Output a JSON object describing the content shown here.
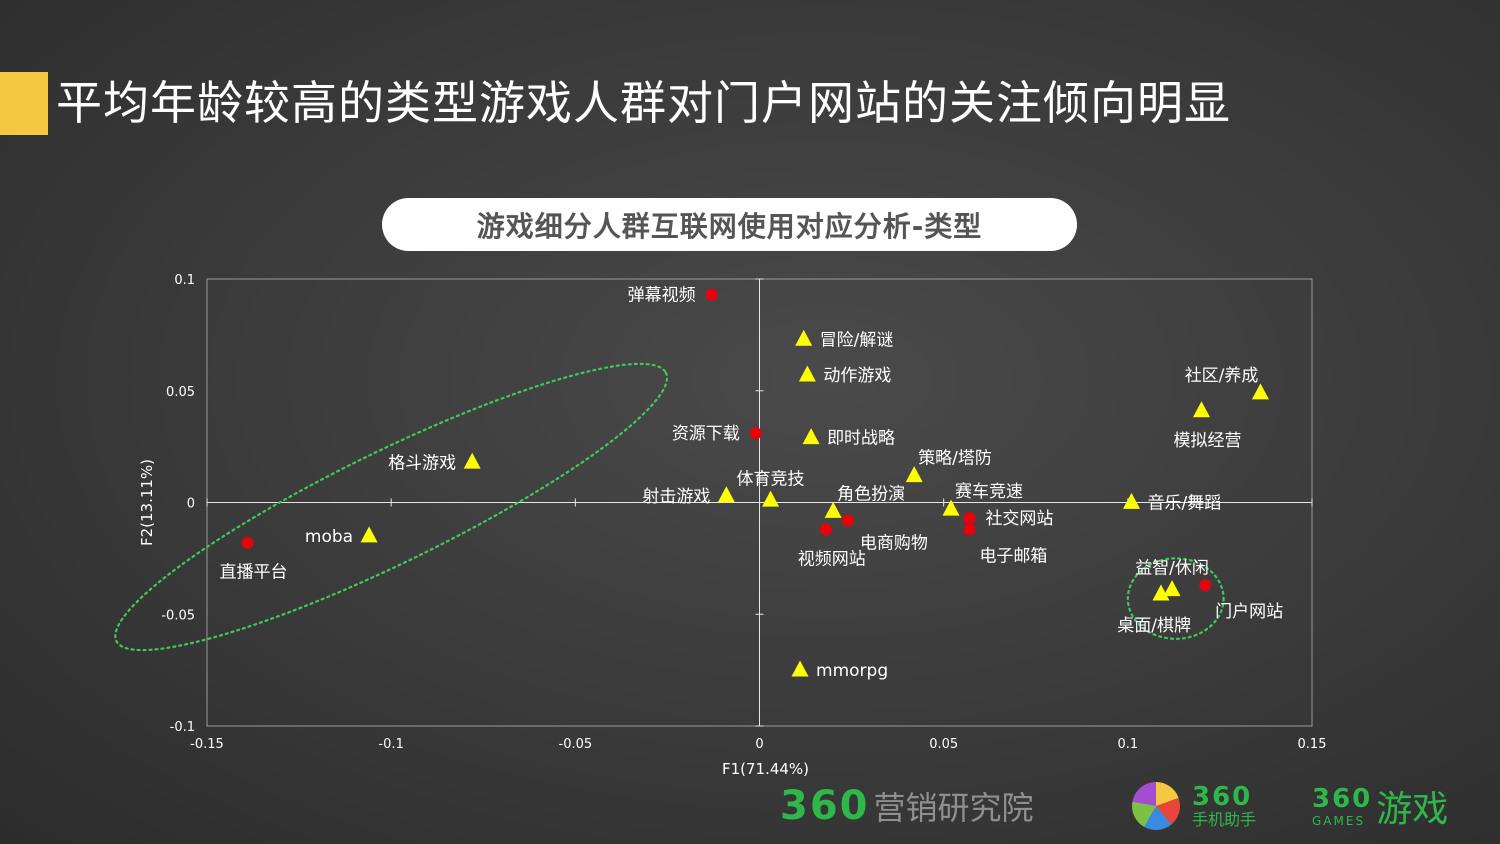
{
  "header": {
    "title": "平均年龄较高的类型游戏人群对门户网站的关注倾向明显",
    "subtitle": "游戏细分人群互联网使用对应分析-类型",
    "accent_color": "#f5c842"
  },
  "chart_data": {
    "type": "scatter",
    "xlabel": "F1(71.44%)",
    "ylabel": "F2(13.11%)",
    "xlim": [
      -0.15,
      0.15
    ],
    "ylim": [
      -0.1,
      0.1
    ],
    "xticks": [
      "-0.15",
      "-0.1",
      "-0.05",
      "0",
      "0.05",
      "0.1",
      "0.15"
    ],
    "yticks": [
      "0.1",
      "0.05",
      "0",
      "-0.05",
      "-0.1"
    ],
    "grid": false,
    "series": [
      {
        "marker": "circle",
        "color": "#e8000b",
        "points": [
          {
            "label": "弹幕视频",
            "x": -0.013,
            "y": 0.093,
            "anchor": "left"
          },
          {
            "label": "资源下载",
            "x": -0.001,
            "y": 0.031,
            "anchor": "left"
          },
          {
            "label": "直播平台",
            "x": -0.139,
            "y": -0.018,
            "anchor": "below"
          },
          {
            "label": "电商购物",
            "x": 0.024,
            "y": -0.008,
            "anchor": "right-below"
          },
          {
            "label": "视频网站",
            "x": 0.018,
            "y": -0.012,
            "anchor": "below"
          },
          {
            "label": "社交网站",
            "x": 0.057,
            "y": -0.007,
            "anchor": "right"
          },
          {
            "label": "电子邮箱",
            "x": 0.057,
            "y": -0.012,
            "anchor": "below-right"
          },
          {
            "label": "门户网站",
            "x": 0.121,
            "y": -0.037,
            "anchor": "below-right"
          }
        ]
      },
      {
        "marker": "triangle",
        "color": "#ffff00",
        "points": [
          {
            "label": "冒险/解谜",
            "x": 0.012,
            "y": 0.073,
            "anchor": "right"
          },
          {
            "label": "动作游戏",
            "x": 0.013,
            "y": 0.057,
            "anchor": "right"
          },
          {
            "label": "即时战略",
            "x": 0.014,
            "y": 0.029,
            "anchor": "right"
          },
          {
            "label": "策略/塔防",
            "x": 0.042,
            "y": 0.012,
            "anchor": "above-right"
          },
          {
            "label": "体育竞技",
            "x": 0.003,
            "y": 0.001,
            "anchor": "above"
          },
          {
            "label": "射击游戏",
            "x": -0.009,
            "y": 0.003,
            "anchor": "left"
          },
          {
            "label": "角色扮演",
            "x": 0.02,
            "y": -0.004,
            "anchor": "above-right"
          },
          {
            "label": "赛车竞速",
            "x": 0.052,
            "y": -0.003,
            "anchor": "above-right"
          },
          {
            "label": "音乐/舞蹈",
            "x": 0.101,
            "y": 0.0,
            "anchor": "right"
          },
          {
            "label": "格斗游戏",
            "x": -0.078,
            "y": 0.018,
            "anchor": "left"
          },
          {
            "label": "moba",
            "x": -0.106,
            "y": -0.015,
            "anchor": "left"
          },
          {
            "label": "社区/养成",
            "x": 0.136,
            "y": 0.049,
            "anchor": "above-left"
          },
          {
            "label": "模拟经营",
            "x": 0.12,
            "y": 0.041,
            "anchor": "below"
          },
          {
            "label": "益智/休闲",
            "x": 0.112,
            "y": -0.039,
            "anchor": "above"
          },
          {
            "label": "桌面/棋牌",
            "x": 0.109,
            "y": -0.041,
            "anchor": "below-left"
          },
          {
            "label": "mmorpg",
            "x": 0.011,
            "y": -0.075,
            "anchor": "right"
          }
        ]
      }
    ],
    "annotations": [
      {
        "shape": "ellipse",
        "style": "dotted",
        "color": "#3ec95a",
        "cx": -0.1,
        "cy": -0.002,
        "rx": 0.083,
        "ry": 0.025,
        "rotation_deg": -26
      },
      {
        "shape": "ellipse",
        "style": "dotted",
        "color": "#3ec95a",
        "cx": 0.113,
        "cy": -0.043,
        "rx": 0.013,
        "ry": 0.018,
        "rotation_deg": 0
      }
    ]
  },
  "branding": {
    "brand_a": {
      "mark": "360",
      "text": "营销研究院"
    },
    "brand_b": {
      "mark": "360",
      "sub": "手机助手"
    },
    "brand_c": {
      "mark": "360",
      "sub": "GAMES",
      "text": "游戏"
    }
  }
}
